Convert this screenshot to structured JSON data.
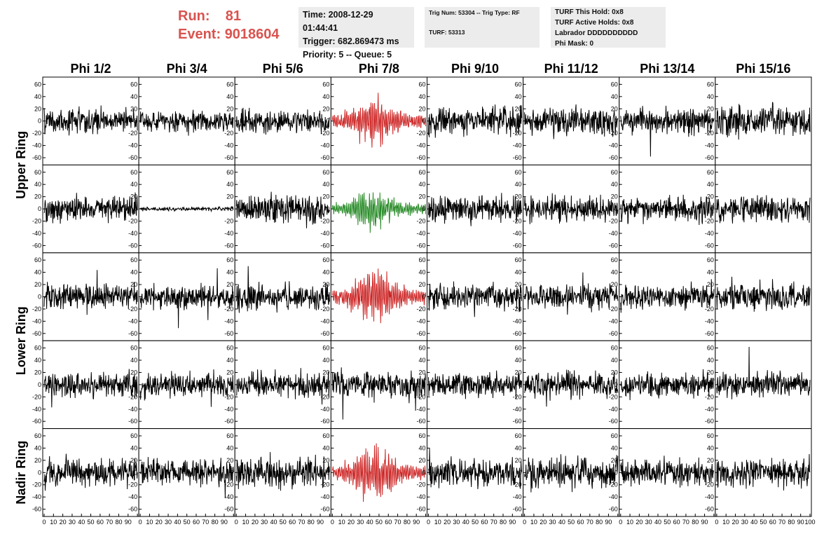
{
  "header": {
    "run_label": "Run:",
    "run_value": "81",
    "event_label": "Event:",
    "event_value": "9018604"
  },
  "info_box_1": {
    "time": "Time: 2008-12-29 01:44:41",
    "trigger": "Trigger: 682.869473 ms",
    "priority": "Priority: 5 -- Queue: 5"
  },
  "info_box_2": {
    "trig": "Trig Num: 53304 -- Trig Type: RF",
    "turf": "TURF: 53313"
  },
  "info_box_3": {
    "this_hold": "TURF This Hold: 0x8",
    "active_holds": "TURF Active Holds: 0x8",
    "labrador": "Labrador DDDDDDDDDD",
    "phi_mask": "Phi Mask: 0"
  },
  "chart_data": {
    "type": "line",
    "column_titles": [
      "Phi 1/2",
      "Phi 3/4",
      "Phi 5/6",
      "Phi 7/8",
      "Phi 9/10",
      "Phi 11/12",
      "Phi 13/14",
      "Phi 15/16"
    ],
    "row_labels": [
      {
        "text": "Upper Ring",
        "rows": [
          0,
          1
        ]
      },
      {
        "text": "Lower Ring",
        "rows": [
          2,
          3
        ]
      },
      {
        "text": "Nadir Ring",
        "rows": [
          4,
          4
        ]
      }
    ],
    "xlim": [
      0,
      100
    ],
    "ylim": [
      -65,
      65
    ],
    "y_ticks": [
      -60,
      -40,
      -20,
      0,
      20,
      40,
      60
    ],
    "x_tick_labels": [
      "0",
      "10",
      "20",
      "30",
      "40",
      "50",
      "60",
      "70",
      "80",
      "90",
      "100"
    ],
    "trace_colors": {
      "normal": "#000000",
      "triggered": "#cc2222",
      "triggered_alt": "#228822"
    },
    "panels": [
      [
        {
          "amp": 12,
          "color": "normal"
        },
        {
          "amp": 10,
          "color": "normal"
        },
        {
          "amp": 12,
          "color": "normal"
        },
        {
          "amp": 22,
          "color": "triggered",
          "burst": true
        },
        {
          "amp": 14,
          "color": "normal"
        },
        {
          "amp": 13,
          "color": "normal"
        },
        {
          "amp": 13,
          "color": "normal"
        },
        {
          "amp": 15,
          "color": "normal"
        }
      ],
      [
        {
          "amp": 13,
          "color": "normal"
        },
        {
          "amp": 2,
          "color": "normal"
        },
        {
          "amp": 14,
          "color": "normal"
        },
        {
          "amp": 18,
          "color": "triggered_alt",
          "burst": true
        },
        {
          "amp": 13,
          "color": "normal"
        },
        {
          "amp": 13,
          "color": "normal"
        },
        {
          "amp": 12,
          "color": "normal"
        },
        {
          "amp": 12,
          "color": "normal"
        }
      ],
      [
        {
          "amp": 13,
          "color": "normal"
        },
        {
          "amp": 12,
          "color": "normal"
        },
        {
          "amp": 13,
          "color": "normal"
        },
        {
          "amp": 24,
          "color": "triggered",
          "burst": true
        },
        {
          "amp": 12,
          "color": "normal"
        },
        {
          "amp": 12,
          "color": "normal"
        },
        {
          "amp": 12,
          "color": "normal"
        },
        {
          "amp": 13,
          "color": "normal"
        }
      ],
      [
        {
          "amp": 13,
          "color": "normal"
        },
        {
          "amp": 12,
          "color": "normal"
        },
        {
          "amp": 13,
          "color": "normal"
        },
        {
          "amp": 14,
          "color": "normal"
        },
        {
          "amp": 12,
          "color": "normal"
        },
        {
          "amp": 13,
          "color": "normal"
        },
        {
          "amp": 12,
          "color": "normal"
        },
        {
          "amp": 13,
          "color": "normal"
        }
      ],
      [
        {
          "amp": 14,
          "color": "normal"
        },
        {
          "amp": 12,
          "color": "normal"
        },
        {
          "amp": 15,
          "color": "normal"
        },
        {
          "amp": 24,
          "color": "triggered",
          "burst": true
        },
        {
          "amp": 14,
          "color": "normal"
        },
        {
          "amp": 16,
          "color": "normal"
        },
        {
          "amp": 13,
          "color": "normal"
        },
        {
          "amp": 14,
          "color": "normal"
        }
      ]
    ]
  }
}
